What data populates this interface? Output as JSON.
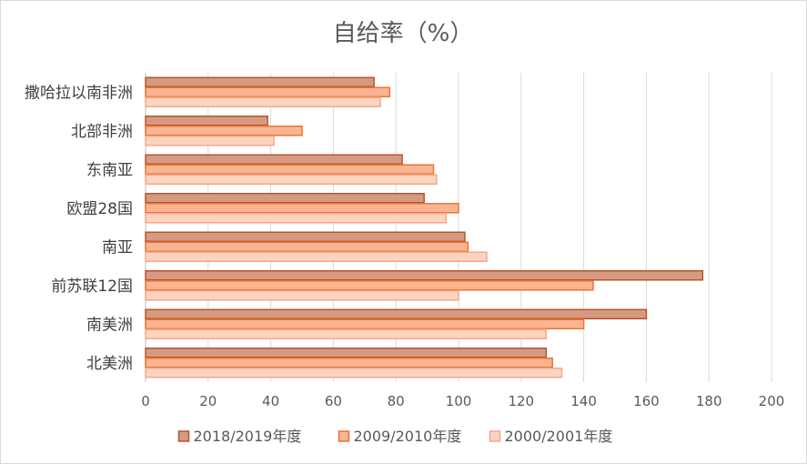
{
  "chart_data": {
    "type": "bar",
    "orientation": "horizontal",
    "title": "自给率（%）",
    "categories": [
      "撒哈拉以南非洲",
      "北部非洲",
      "东南亚",
      "欧盟28国",
      "南亚",
      "前苏联12国",
      "南美洲",
      "北美洲"
    ],
    "series": [
      {
        "name": "2018/2019年度",
        "values": [
          73,
          39,
          82,
          89,
          102,
          178,
          160,
          128
        ],
        "color": "#d69a82",
        "border": "#b5542d"
      },
      {
        "name": "2009/2010年度",
        "values": [
          78,
          50,
          92,
          100,
          103,
          143,
          140,
          130
        ],
        "color": "#f9b592",
        "border": "#ee7234"
      },
      {
        "name": "2000/2001年度",
        "values": [
          75,
          41,
          93,
          96,
          109,
          100,
          128,
          133
        ],
        "color": "#fbd4c0",
        "border": "#f5a78a"
      }
    ],
    "xlim": [
      0,
      200
    ],
    "xticks": [
      0,
      20,
      40,
      60,
      80,
      100,
      120,
      140,
      160,
      180,
      200
    ],
    "grid": true,
    "legend_position": "bottom"
  }
}
